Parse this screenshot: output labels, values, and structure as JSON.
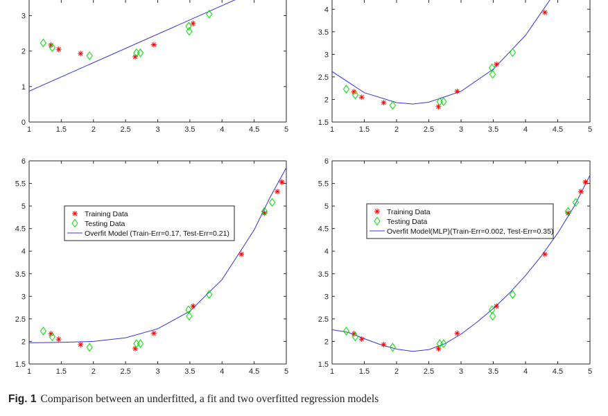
{
  "caption": {
    "label": "Fig. 1",
    "text": "Comparison between an underfitted, a fit and two overfitted regression models"
  },
  "colors": {
    "training": "#ff0000",
    "testing": "#00dd00",
    "model": "#3333dd",
    "axis": "#262626"
  },
  "chart_data": [
    {
      "type": "scatter",
      "panel": "top-left",
      "xlim": [
        1,
        5
      ],
      "ylim": [
        0,
        3.5
      ],
      "xticks": [
        1,
        1.5,
        2,
        2.5,
        3,
        3.5,
        4,
        4.5,
        5
      ],
      "yticks": [
        0,
        1,
        2,
        3
      ],
      "grid": false,
      "legend": null,
      "series": [
        {
          "marker": "star",
          "points": [
            [
              1.34,
              2.17
            ],
            [
              1.46,
              2.05
            ],
            [
              1.8,
              1.93
            ],
            [
              2.65,
              1.84
            ],
            [
              2.94,
              2.18
            ],
            [
              3.55,
              2.78
            ]
          ]
        },
        {
          "marker": "diamond",
          "points": [
            [
              1.22,
              2.23
            ],
            [
              1.36,
              2.1
            ],
            [
              1.94,
              1.87
            ],
            [
              2.67,
              1.95
            ],
            [
              2.73,
              1.95
            ],
            [
              3.48,
              2.7
            ],
            [
              3.49,
              2.56
            ],
            [
              3.8,
              3.04
            ]
          ]
        },
        {
          "marker": "line",
          "curve": "linear",
          "points": [
            [
              1,
              0.87
            ],
            [
              4.27,
              3.5
            ]
          ]
        }
      ]
    },
    {
      "type": "scatter",
      "panel": "top-right",
      "xlim": [
        1,
        5
      ],
      "ylim": [
        1.5,
        4.25
      ],
      "xticks": [
        1,
        1.5,
        2,
        2.5,
        3,
        3.5,
        4,
        4.5,
        5
      ],
      "yticks": [
        1.5,
        2,
        2.5,
        3,
        3.5,
        4
      ],
      "grid": false,
      "legend": null,
      "series": [
        {
          "marker": "star",
          "points": [
            [
              1.34,
              2.17
            ],
            [
              1.46,
              2.05
            ],
            [
              1.8,
              1.93
            ],
            [
              2.65,
              1.84
            ],
            [
              2.94,
              2.18
            ],
            [
              3.55,
              2.78
            ],
            [
              4.3,
              3.93
            ]
          ]
        },
        {
          "marker": "diamond",
          "points": [
            [
              1.22,
              2.23
            ],
            [
              1.36,
              2.1
            ],
            [
              1.94,
              1.87
            ],
            [
              2.67,
              1.95
            ],
            [
              2.73,
              1.95
            ],
            [
              3.48,
              2.7
            ],
            [
              3.49,
              2.56
            ],
            [
              3.8,
              3.04
            ]
          ]
        },
        {
          "marker": "line",
          "curve": "quadratic",
          "points": [
            [
              1,
              2.62
            ],
            [
              1.5,
              2.15
            ],
            [
              2,
              1.93
            ],
            [
              2.25,
              1.9
            ],
            [
              2.5,
              1.94
            ],
            [
              3,
              2.18
            ],
            [
              3.5,
              2.67
            ],
            [
              4,
              3.42
            ],
            [
              4.4,
              4.25
            ]
          ]
        }
      ]
    },
    {
      "type": "scatter",
      "panel": "bottom-left",
      "xlim": [
        1,
        5
      ],
      "ylim": [
        1.5,
        6
      ],
      "xticks": [
        1,
        1.5,
        2,
        2.5,
        3,
        3.5,
        4,
        4.5,
        5
      ],
      "yticks": [
        1.5,
        2,
        2.5,
        3,
        3.5,
        4,
        4.5,
        5,
        5.5,
        6
      ],
      "grid": false,
      "legend": {
        "position": "center-left",
        "entries": [
          "Training Data",
          "Testing Data",
          "Overfit Model (Train-Err=0.17, Test-Err=0.21)"
        ]
      },
      "series": [
        {
          "name": "Training Data",
          "marker": "star",
          "points": [
            [
              1.34,
              2.17
            ],
            [
              1.46,
              2.05
            ],
            [
              1.8,
              1.93
            ],
            [
              2.65,
              1.84
            ],
            [
              2.94,
              2.18
            ],
            [
              3.55,
              2.78
            ],
            [
              4.3,
              3.93
            ],
            [
              4.66,
              4.84
            ],
            [
              4.86,
              5.32
            ],
            [
              4.93,
              5.53
            ]
          ]
        },
        {
          "name": "Testing Data",
          "marker": "diamond",
          "points": [
            [
              1.22,
              2.23
            ],
            [
              1.36,
              2.1
            ],
            [
              1.94,
              1.87
            ],
            [
              2.67,
              1.95
            ],
            [
              2.73,
              1.95
            ],
            [
              3.48,
              2.7
            ],
            [
              3.49,
              2.56
            ],
            [
              3.8,
              3.04
            ],
            [
              4.66,
              4.88
            ],
            [
              4.78,
              5.08
            ]
          ]
        },
        {
          "name": "Overfit Model (Train-Err=0.17, Test-Err=0.21)",
          "marker": "line",
          "curve": "polynomial",
          "points": [
            [
              1,
              1.97
            ],
            [
              1.5,
              1.98
            ],
            [
              2,
              2.0
            ],
            [
              2.5,
              2.08
            ],
            [
              3,
              2.28
            ],
            [
              3.5,
              2.67
            ],
            [
              4,
              3.37
            ],
            [
              4.5,
              4.47
            ],
            [
              4.75,
              5.2
            ],
            [
              5,
              5.85
            ]
          ]
        }
      ]
    },
    {
      "type": "scatter",
      "panel": "bottom-right",
      "xlim": [
        1,
        5
      ],
      "ylim": [
        1.5,
        6
      ],
      "xticks": [
        1,
        1.5,
        2,
        2.5,
        3,
        3.5,
        4,
        4.5,
        5
      ],
      "yticks": [
        1.5,
        2,
        2.5,
        3,
        3.5,
        4,
        4.5,
        5,
        5.5,
        6
      ],
      "grid": false,
      "legend": {
        "position": "upper-center",
        "entries": [
          "Training Data",
          "Testing Data",
          "Overfit Model(MLP)(Train-Err=0.002, Test-Err=0.35)"
        ]
      },
      "series": [
        {
          "name": "Training Data",
          "marker": "star",
          "points": [
            [
              1.34,
              2.17
            ],
            [
              1.46,
              2.05
            ],
            [
              1.8,
              1.93
            ],
            [
              2.65,
              1.84
            ],
            [
              2.94,
              2.18
            ],
            [
              3.55,
              2.78
            ],
            [
              4.3,
              3.93
            ],
            [
              4.66,
              4.84
            ],
            [
              4.86,
              5.32
            ],
            [
              4.93,
              5.53
            ]
          ]
        },
        {
          "name": "Testing Data",
          "marker": "diamond",
          "points": [
            [
              1.22,
              2.23
            ],
            [
              1.36,
              2.1
            ],
            [
              1.94,
              1.87
            ],
            [
              2.67,
              1.95
            ],
            [
              2.73,
              1.95
            ],
            [
              3.48,
              2.7
            ],
            [
              3.49,
              2.56
            ],
            [
              3.8,
              3.04
            ],
            [
              4.66,
              4.88
            ],
            [
              4.78,
              5.08
            ]
          ]
        },
        {
          "name": "Overfit Model(MLP)(Train-Err=0.002, Test-Err=0.35)",
          "marker": "line",
          "curve": "mlp",
          "points": [
            [
              1,
              2.26
            ],
            [
              1.25,
              2.2
            ],
            [
              1.5,
              2.06
            ],
            [
              1.75,
              1.93
            ],
            [
              2,
              1.83
            ],
            [
              2.25,
              1.78
            ],
            [
              2.5,
              1.82
            ],
            [
              2.75,
              1.95
            ],
            [
              3,
              2.16
            ],
            [
              3.25,
              2.43
            ],
            [
              3.5,
              2.73
            ],
            [
              3.75,
              3.07
            ],
            [
              4,
              3.46
            ],
            [
              4.25,
              3.9
            ],
            [
              4.5,
              4.4
            ],
            [
              4.75,
              4.98
            ],
            [
              5,
              5.68
            ]
          ]
        }
      ]
    }
  ]
}
